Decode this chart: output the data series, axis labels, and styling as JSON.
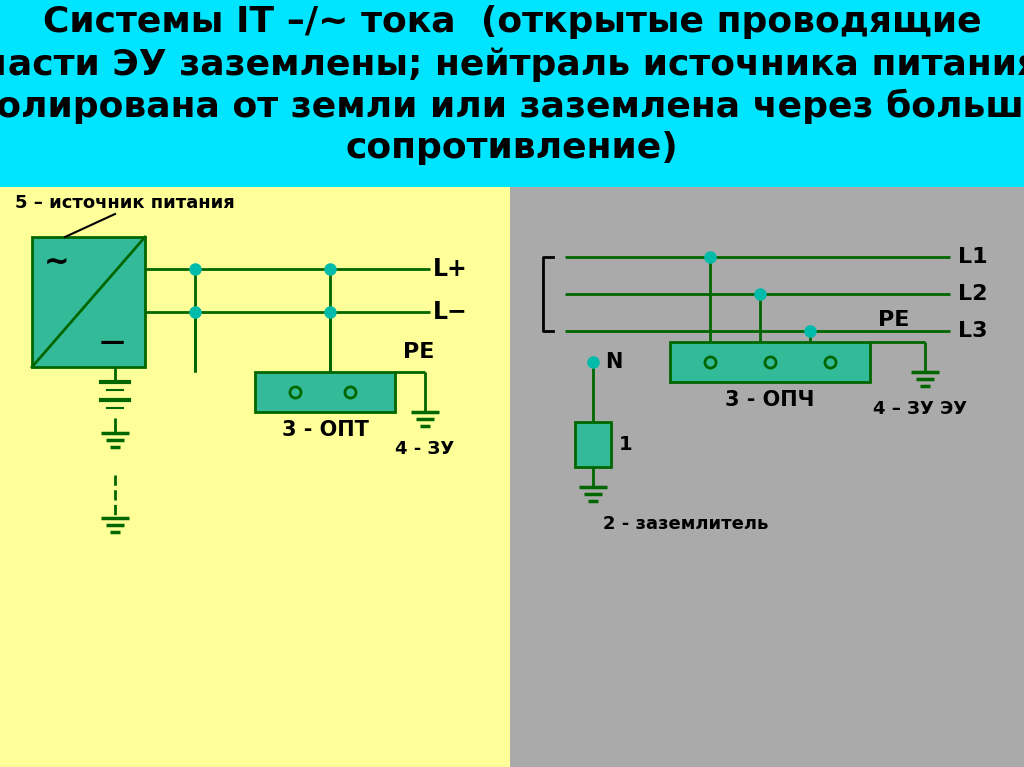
{
  "bg_top": "#00E5FF",
  "bg_left": "#FFFF99",
  "bg_right": "#AAAAAA",
  "green_fill": "#33BB99",
  "wire_color": "#006600",
  "dot_color": "#00BBAA",
  "text_color": "#000000",
  "title_line1": "Системы IT –/~ тока (открытые проводящие",
  "title_line2": "части ЭУ заземлены; нейтраль источника питания",
  "title_line3": "изолирована от земли или заземлена через большое",
  "title_line4": "сопротивление)"
}
